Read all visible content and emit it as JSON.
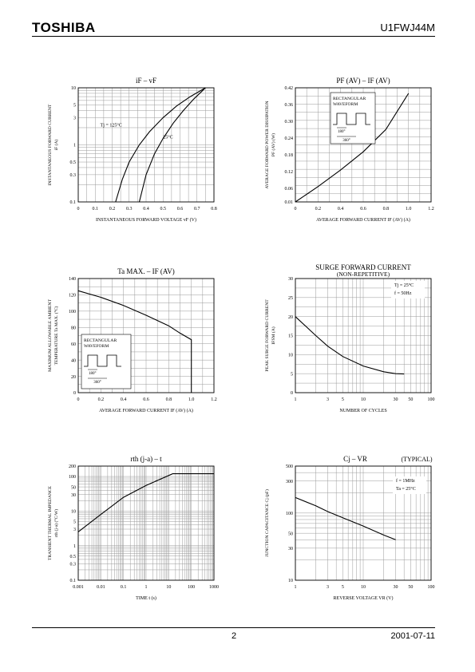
{
  "header": {
    "brand": "TOSHIBA",
    "part_number": "U1FWJ44M"
  },
  "footer": {
    "page": "2",
    "date": "2001-07-11"
  },
  "chart_data": [
    {
      "id": "c1",
      "type": "line",
      "title": "iF – vF",
      "xlabel": "INSTANTANEOUS FORWARD VOLTAGE  vF   (V)",
      "ylabel": "INSTANTANEOUS FORWARD CURRENT",
      "ylabel2": "iF   (A)",
      "xscale": "linear",
      "yscale": "log",
      "xlim": [
        0,
        0.8
      ],
      "ylim": [
        0.1,
        10
      ],
      "xticks": [
        0,
        0.1,
        0.2,
        0.3,
        0.4,
        0.5,
        0.6,
        0.7,
        0.8
      ],
      "xticklabels": [
        "0",
        "0.1",
        "0.2",
        "0.3",
        "0.4",
        "0.5",
        "0.6",
        "0.7",
        "0.8"
      ],
      "yticks": [
        0.1,
        0.3,
        0.5,
        1,
        3,
        5,
        10
      ],
      "yticklabels": [
        "0.1",
        "0.3",
        "0.5",
        "1",
        "3",
        "5",
        "10"
      ],
      "series": [
        {
          "name": "Tj = 125°C",
          "x": [
            0.22,
            0.26,
            0.3,
            0.36,
            0.42,
            0.5,
            0.58,
            0.66,
            0.75
          ],
          "y": [
            0.1,
            0.25,
            0.5,
            1.0,
            1.7,
            3.0,
            4.8,
            7.0,
            10
          ]
        },
        {
          "name": "25°C",
          "x": [
            0.36,
            0.4,
            0.45,
            0.5,
            0.56,
            0.62,
            0.68,
            0.75
          ],
          "y": [
            0.1,
            0.3,
            0.7,
            1.3,
            2.4,
            4.0,
            6.3,
            10
          ]
        }
      ],
      "annotations": [
        {
          "text": "Tj = 125°C",
          "x": 0.13,
          "y": 2.1
        },
        {
          "text": "25°C",
          "x": 0.5,
          "y": 1.3
        }
      ]
    },
    {
      "id": "c2",
      "type": "line",
      "title": "PF (AV) – IF (AV)",
      "xlabel": "AVERAGE FORWARD CURRENT   IF (AV)   (A)",
      "ylabel": "AVERAGE FORWARD POWER DISSIPATION",
      "ylabel2": "PF (AV)   (W)",
      "xscale": "linear",
      "yscale": "linear",
      "xlim": [
        0,
        1.2
      ],
      "ylim": [
        0.01,
        0.42
      ],
      "xticks": [
        0,
        0.2,
        0.4,
        0.6,
        0.8,
        1.0,
        1.2
      ],
      "xticklabels": [
        "0",
        "0.2",
        "0.4",
        "0.6",
        "0.8",
        "1.0",
        "1.2"
      ],
      "yticks": [
        0.01,
        0.06,
        0.12,
        0.18,
        0.24,
        0.3,
        0.36,
        0.42
      ],
      "yticklabels": [
        "0.01",
        "0.06",
        "0.12",
        "0.18",
        "0.24",
        "0.30",
        "0.36",
        "0.42"
      ],
      "series": [
        {
          "name": "",
          "x": [
            0,
            0.2,
            0.4,
            0.6,
            0.8,
            1.0
          ],
          "y": [
            0.01,
            0.065,
            0.125,
            0.19,
            0.27,
            0.4
          ]
        }
      ],
      "inset": {
        "title": "RECTANGULAR WAVEFORM",
        "label1": "180°",
        "label2": "360°"
      }
    },
    {
      "id": "c3",
      "type": "line",
      "title": "Ta MAX. – IF (AV)",
      "xlabel": "AVERAGE FORWARD CURRENT   IF (AV)   (A)",
      "ylabel": "MAXIMUM ALLOWABLE AMBIENT",
      "ylabel2": "TEMPERATURE  Ta  MAX.  (°C)",
      "xscale": "linear",
      "yscale": "linear",
      "xlim": [
        0,
        1.2
      ],
      "ylim": [
        0,
        140
      ],
      "xticks": [
        0,
        0.2,
        0.4,
        0.6,
        0.8,
        1.0,
        1.2
      ],
      "xticklabels": [
        "0",
        "0.2",
        "0.4",
        "0.6",
        "0.8",
        "1.0",
        "1.2"
      ],
      "yticks": [
        0,
        20,
        40,
        60,
        80,
        100,
        120,
        140
      ],
      "yticklabels": [
        "0",
        "20",
        "40",
        "60",
        "80",
        "100",
        "120",
        "140"
      ],
      "series": [
        {
          "name": "",
          "x": [
            0,
            0.2,
            0.4,
            0.6,
            0.8,
            0.9,
            1.0,
            1.0
          ],
          "y": [
            125,
            117,
            107,
            95,
            82,
            73,
            65,
            0
          ]
        }
      ],
      "inset": {
        "title": "RECTANGULAR WAVEFORM",
        "label1": "180°",
        "label2": "360°"
      }
    },
    {
      "id": "c4",
      "type": "line",
      "title": "SURGE FORWARD CURRENT",
      "subtitle": "(NON-REPETITIVE)",
      "xlabel": "NUMBER OF CYCLES",
      "ylabel": "PEAK SURGE FORWARD CURRENT",
      "ylabel2": "IFSM   (A)",
      "xscale": "log",
      "yscale": "linear",
      "xlim": [
        1,
        100
      ],
      "ylim": [
        0,
        30
      ],
      "xticks": [
        1,
        3,
        5,
        10,
        30,
        50,
        100
      ],
      "xticklabels": [
        "1",
        "3",
        "5",
        "10",
        "30",
        "50",
        "100"
      ],
      "yticks": [
        0,
        5,
        10,
        15,
        20,
        25,
        30
      ],
      "yticklabels": [
        "0",
        "5",
        "10",
        "15",
        "20",
        "25",
        "30"
      ],
      "series": [
        {
          "name": "",
          "x": [
            1,
            2,
            3,
            5,
            10,
            20,
            30,
            40
          ],
          "y": [
            20,
            15,
            12.2,
            9.5,
            7,
            5.5,
            5,
            4.9
          ]
        }
      ],
      "conditions": [
        "Tj = 25°C",
        "f = 50Hz"
      ]
    },
    {
      "id": "c5",
      "type": "line",
      "title": "rth (j-a) – t",
      "xlabel": "TIME   t   (s)",
      "ylabel": "TRANSIENT THERMAL IMPEDANCE",
      "ylabel2": "rth (j-a)   (°C/W)",
      "xscale": "log",
      "yscale": "log",
      "xlim": [
        0.001,
        1000
      ],
      "ylim": [
        0.1,
        200
      ],
      "xticks": [
        0.001,
        0.01,
        0.1,
        1,
        10,
        100,
        1000
      ],
      "xticklabels": [
        "0.001",
        "0.01",
        "0.1",
        "1",
        "10",
        "100",
        "1000"
      ],
      "yticks": [
        0.1,
        0.3,
        0.5,
        1,
        3,
        5,
        10,
        30,
        50,
        100,
        200
      ],
      "yticklabels": [
        "0.1",
        "0.3",
        "0.5",
        "1",
        "3",
        "5",
        "10",
        "30",
        "50",
        "100",
        "200"
      ],
      "series": [
        {
          "name": "",
          "x": [
            0.001,
            0.01,
            0.1,
            1,
            15,
            1000
          ],
          "y": [
            2.5,
            8,
            25,
            55,
            120,
            120
          ]
        }
      ]
    },
    {
      "id": "c6",
      "type": "line",
      "title": "Cj – VR",
      "title_note": "(TYPICAL)",
      "xlabel": "REVERSE VOLTAGE   VR   (V)",
      "ylabel": "JUNCTION CAPACITANCE   Cj   (pF)",
      "ylabel2": "",
      "xscale": "log",
      "yscale": "log",
      "xlim": [
        1,
        100
      ],
      "ylim": [
        10,
        500
      ],
      "xticks": [
        1,
        3,
        5,
        10,
        30,
        50,
        100
      ],
      "xticklabels": [
        "1",
        "3",
        "5",
        "10",
        "30",
        "50",
        "100"
      ],
      "yticks": [
        10,
        30,
        50,
        100,
        300,
        500
      ],
      "yticklabels": [
        "10",
        "30",
        "50",
        "100",
        "300",
        "500"
      ],
      "series": [
        {
          "name": "",
          "x": [
            1,
            2,
            3,
            5,
            10,
            20,
            30
          ],
          "y": [
            170,
            128,
            105,
            85,
            64,
            47,
            40
          ]
        }
      ],
      "conditions": [
        "f = 1MHz",
        "Ta = 25°C"
      ]
    }
  ]
}
